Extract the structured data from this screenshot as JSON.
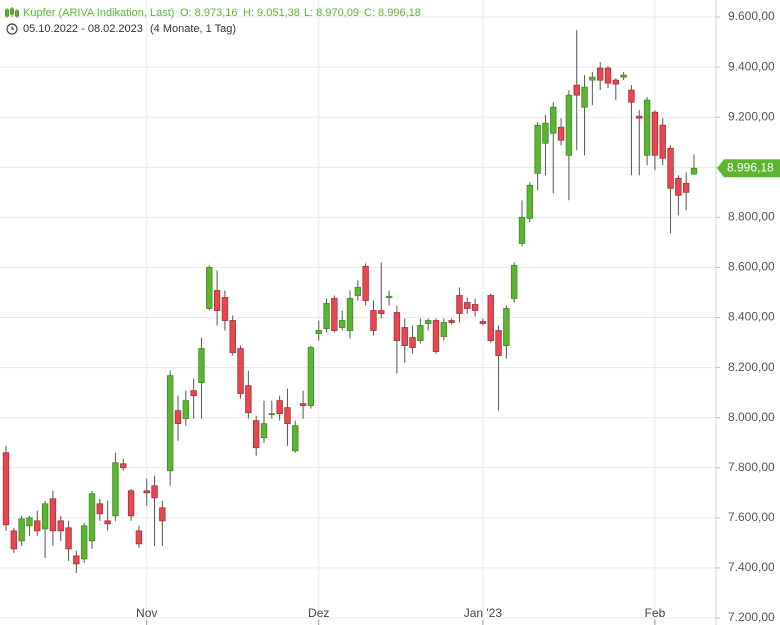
{
  "chart_data": {
    "type": "candlestick",
    "title": "Kupfer (ARIVA Indikation, Last)",
    "ohlc_texts": [
      "O: 8.973,16",
      "H: 9.051,38",
      "L: 8.970,09",
      "C: 8.996,18"
    ],
    "period": "05.10.2022 - 08.02.2023",
    "period_note": "(4 Monate, 1 Tag)",
    "last_label": "8.996,18",
    "up_color": "#5cb531",
    "down_color": "#e8474f",
    "grid": true,
    "ylim": [
      7172,
      9668
    ],
    "yticks": [
      {
        "value": 7200,
        "label": "7.200,00"
      },
      {
        "value": 7400,
        "label": "7.400,00"
      },
      {
        "value": 7600,
        "label": "7.600,00"
      },
      {
        "value": 7800,
        "label": "7.800,00"
      },
      {
        "value": 8000,
        "label": "8.000,00"
      },
      {
        "value": 8200,
        "label": "8.200,00"
      },
      {
        "value": 8400,
        "label": "8.400,00"
      },
      {
        "value": 8600,
        "label": "8.600,00"
      },
      {
        "value": 8800,
        "label": "8.800,00"
      },
      {
        "value": 9000,
        "label": "9.000,00"
      },
      {
        "value": 9200,
        "label": "9.200,00"
      },
      {
        "value": 9400,
        "label": "9.400,00"
      },
      {
        "value": 9600,
        "label": "9.600,00"
      }
    ],
    "categories": [
      null,
      null,
      null,
      null,
      null,
      null,
      null,
      null,
      null,
      null,
      null,
      null,
      null,
      null,
      null,
      null,
      null,
      null,
      "Nov",
      null,
      null,
      null,
      null,
      null,
      null,
      null,
      null,
      null,
      null,
      null,
      null,
      null,
      null,
      null,
      null,
      null,
      null,
      null,
      null,
      null,
      "Dez",
      null,
      null,
      null,
      null,
      null,
      null,
      null,
      null,
      null,
      null,
      null,
      null,
      null,
      null,
      null,
      null,
      null,
      null,
      null,
      null,
      "Jan '23",
      null,
      null,
      null,
      null,
      null,
      null,
      null,
      null,
      null,
      null,
      null,
      null,
      null,
      null,
      null,
      null,
      null,
      null,
      null,
      null,
      null,
      "Feb",
      null,
      null,
      null,
      null,
      null
    ],
    "open": [
      7860,
      7548,
      7508,
      7568,
      7588,
      7556,
      7676,
      7588,
      7560,
      7448,
      7436,
      7508,
      7656,
      7588,
      7608,
      7816,
      7708,
      7548,
      7708,
      7728,
      7640,
      7788,
      8028,
      7996,
      8108,
      8140,
      8436,
      8508,
      8480,
      8388,
      8276,
      8128,
      7988,
      7920,
      8012,
      8068,
      8040,
      7868,
      8056,
      8048,
      8336,
      8356,
      8476,
      8360,
      8348,
      8488,
      8604,
      8428,
      8428,
      8480,
      8420,
      8360,
      8320,
      8308,
      8376,
      8388,
      8324,
      8388,
      8488,
      8460,
      8452,
      8384,
      8488,
      8348,
      8288,
      8476,
      8696,
      8796,
      8976,
      9096,
      9136,
      9160,
      9048,
      9328,
      9240,
      9348,
      9396,
      9396,
      9348,
      9360,
      9308,
      9204,
      9048,
      9220,
      9168,
      9076,
      8956,
      8936,
      8973.16
    ],
    "high": [
      7888,
      7560,
      7608,
      7608,
      7628,
      7668,
      7708,
      7608,
      7588,
      7468,
      7580,
      7708,
      7676,
      7668,
      7860,
      7836,
      7716,
      7568,
      7756,
      7768,
      7668,
      8188,
      8088,
      8108,
      8156,
      8320,
      8608,
      8588,
      8508,
      8408,
      8288,
      8188,
      8008,
      8068,
      8068,
      8088,
      8116,
      7988,
      8108,
      8288,
      8388,
      8476,
      8488,
      8428,
      8508,
      8548,
      8616,
      8468,
      8620,
      8508,
      8448,
      8396,
      8368,
      8396,
      8396,
      8396,
      8396,
      8396,
      8520,
      8480,
      8476,
      8396,
      8496,
      8368,
      8448,
      8620,
      8868,
      8940,
      9180,
      9208,
      9260,
      9196,
      9308,
      9548,
      9368,
      9380,
      9420,
      9404,
      9356,
      9380,
      9328,
      9228,
      9280,
      9228,
      9196,
      9088,
      8968,
      8980,
      9051.38
    ],
    "low": [
      7548,
      7460,
      7488,
      7528,
      7528,
      7440,
      7488,
      7508,
      7428,
      7380,
      7420,
      7476,
      7588,
      7548,
      7588,
      7788,
      7588,
      7480,
      7648,
      7488,
      7488,
      7728,
      7908,
      7968,
      7996,
      7996,
      8428,
      8368,
      8348,
      8248,
      8076,
      7996,
      7848,
      7900,
      7996,
      7988,
      7888,
      7860,
      7996,
      8036,
      8308,
      8340,
      8340,
      8348,
      8316,
      8468,
      8448,
      8328,
      8396,
      8448,
      8176,
      8220,
      8256,
      8296,
      8348,
      8256,
      8308,
      8372,
      8380,
      8416,
      8404,
      8368,
      8300,
      8028,
      8236,
      8460,
      8684,
      8780,
      8908,
      8968,
      8896,
      9088,
      8868,
      9068,
      9048,
      9248,
      9308,
      9316,
      9268,
      9348,
      8968,
      8968,
      9008,
      8988,
      9008,
      8736,
      8808,
      8828,
      8970.09
    ],
    "close": [
      7572,
      7476,
      7596,
      7600,
      7548,
      7656,
      7548,
      7548,
      7476,
      7416,
      7568,
      7696,
      7616,
      7576,
      7820,
      7800,
      7608,
      7496,
      7700,
      7680,
      7588,
      8168,
      7976,
      8068,
      8088,
      8276,
      8600,
      8428,
      8388,
      8260,
      8096,
      8020,
      7880,
      7976,
      8016,
      8016,
      7976,
      7968,
      8048,
      8280,
      8348,
      8456,
      8348,
      8388,
      8476,
      8520,
      8468,
      8348,
      8416,
      8484,
      8308,
      8288,
      8280,
      8368,
      8388,
      8264,
      8380,
      8380,
      8416,
      8436,
      8428,
      8376,
      8308,
      8248,
      8436,
      8608,
      8800,
      8928,
      9168,
      9176,
      9240,
      9108,
      9288,
      9288,
      9320,
      9360,
      9348,
      9336,
      9332,
      9368,
      9260,
      9196,
      9268,
      9048,
      9036,
      8916,
      8888,
      8900,
      8996.18
    ]
  }
}
